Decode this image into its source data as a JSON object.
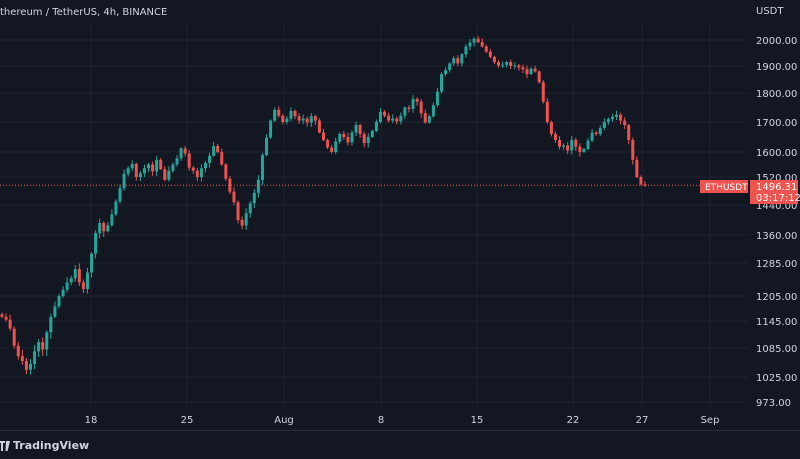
{
  "header": {
    "symbol_line": "thereum / TetherUS, 4h, BINANCE"
  },
  "footer": {
    "brand": "TradingView"
  },
  "colors": {
    "background": "#131722",
    "up": "#26a69a",
    "down": "#ef5350",
    "grid": "#1f2330",
    "price_line": "#ef5350"
  },
  "chart_data": {
    "type": "candlestick",
    "title": "thereum / TetherUS, 4h, BINANCE",
    "ylabel": "USDT",
    "ylim": [
      960,
      2060
    ],
    "x_tick_labels": [
      "18",
      "25",
      "Aug",
      "8",
      "15",
      "22",
      "27",
      "Sep"
    ],
    "y_ticks": [
      973,
      1025,
      1085,
      1145,
      1205,
      1285,
      1360,
      1440,
      1520,
      1600,
      1700,
      1800,
      1900,
      2000
    ],
    "y_tick_labels": [
      "973.00",
      "1025.00",
      "1085.00",
      "1145.00",
      "1205.00",
      "1285.00",
      "1360.00",
      "1440.00",
      "1520.00",
      "1600.00",
      "1700.00",
      "1800.00",
      "1900.00",
      "2000.00"
    ],
    "last_price": {
      "label": "ETHUSDT",
      "value": "1496.31",
      "countdown": "03:17:12"
    },
    "series": [
      {
        "values": [
          1155,
          1148,
          1128,
          1090,
          1068,
          1058,
          1040,
          1052,
          1078,
          1098,
          1082,
          1120,
          1155,
          1180,
          1205,
          1220,
          1238,
          1248,
          1270,
          1238,
          1222,
          1262,
          1310,
          1365,
          1392,
          1370,
          1386,
          1415,
          1450,
          1488,
          1530,
          1548,
          1562,
          1520,
          1532,
          1548,
          1560,
          1538,
          1575,
          1545,
          1512,
          1540,
          1560,
          1580,
          1612,
          1595,
          1550,
          1540,
          1520,
          1548,
          1565,
          1588,
          1620,
          1600,
          1560,
          1515,
          1478,
          1448,
          1400,
          1385,
          1418,
          1445,
          1475,
          1512,
          1590,
          1648,
          1705,
          1742,
          1722,
          1700,
          1712,
          1738,
          1720,
          1705,
          1712,
          1698,
          1720,
          1705,
          1665,
          1640,
          1615,
          1600,
          1635,
          1660,
          1650,
          1632,
          1665,
          1690,
          1660,
          1630,
          1650,
          1670,
          1700,
          1735,
          1722,
          1705,
          1712,
          1702,
          1722,
          1750,
          1745,
          1780,
          1770,
          1730,
          1698,
          1720,
          1758,
          1805,
          1870,
          1885,
          1910,
          1930,
          1910,
          1945,
          1975,
          1990,
          2005,
          1992,
          1975,
          1955,
          1935,
          1915,
          1902,
          1905,
          1915,
          1900,
          1902,
          1895,
          1888,
          1870,
          1890,
          1880,
          1840,
          1770,
          1700,
          1660,
          1640,
          1618,
          1622,
          1605,
          1640,
          1618,
          1600,
          1610,
          1638,
          1665,
          1660,
          1680,
          1700,
          1710,
          1718,
          1725,
          1705,
          1690,
          1640,
          1575,
          1520,
          1499,
          1496.31
        ]
      }
    ]
  }
}
